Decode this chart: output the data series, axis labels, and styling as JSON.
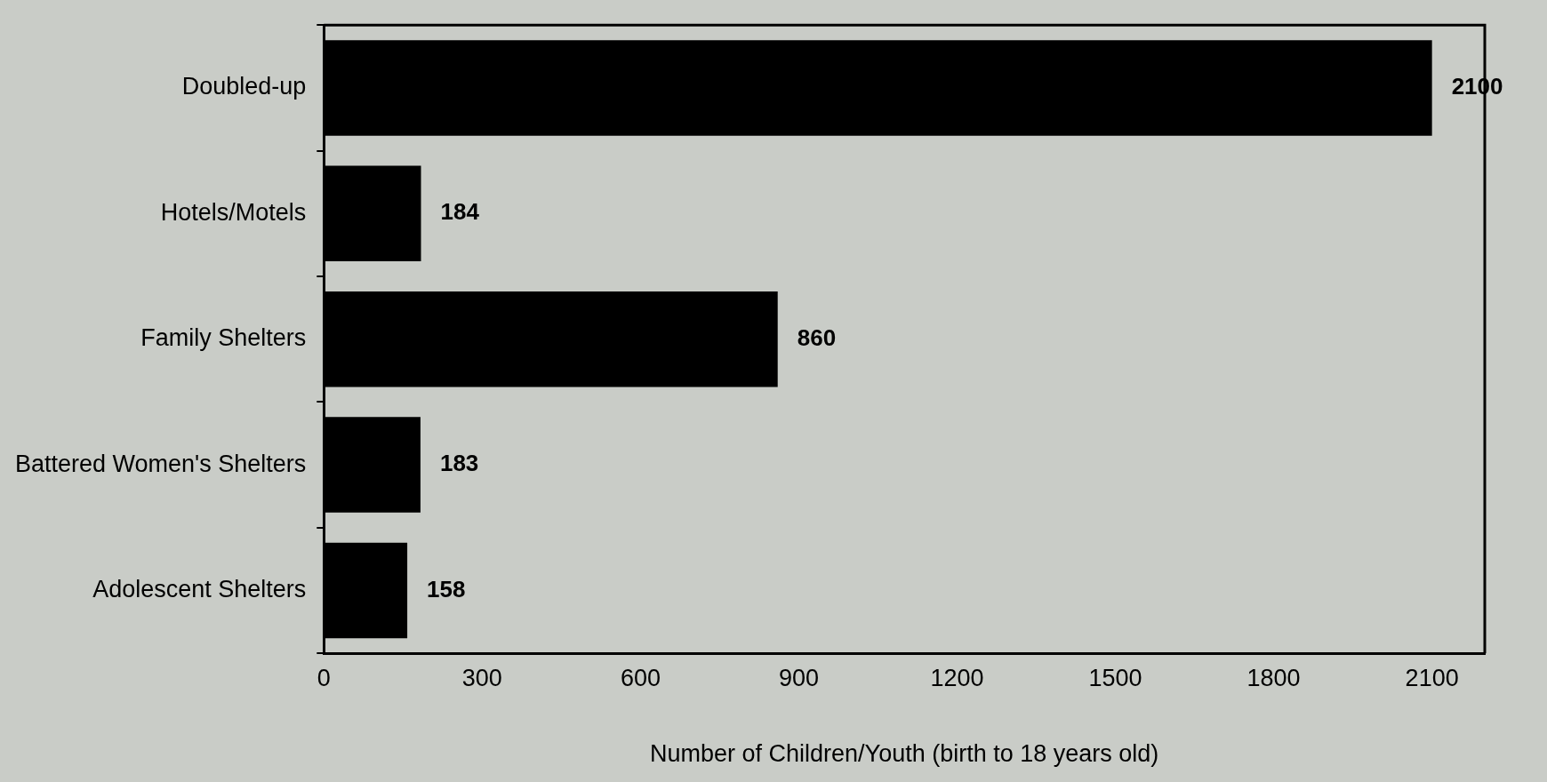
{
  "chart_data": {
    "type": "bar",
    "orientation": "horizontal",
    "xlabel": "Number of Children/Youth (birth to 18 years old)",
    "categories": [
      "Doubled-up",
      "Hotels/Motels",
      "Family Shelters",
      "Battered Women's Shelters",
      "Adolescent Shelters"
    ],
    "values": [
      2100,
      184,
      860,
      183,
      158
    ],
    "color": "#000000",
    "xlim": [
      0,
      2200
    ],
    "xticks": [
      0,
      300,
      600,
      900,
      1200,
      1500,
      1800,
      2100
    ],
    "grid": false,
    "data_labels": true
  }
}
